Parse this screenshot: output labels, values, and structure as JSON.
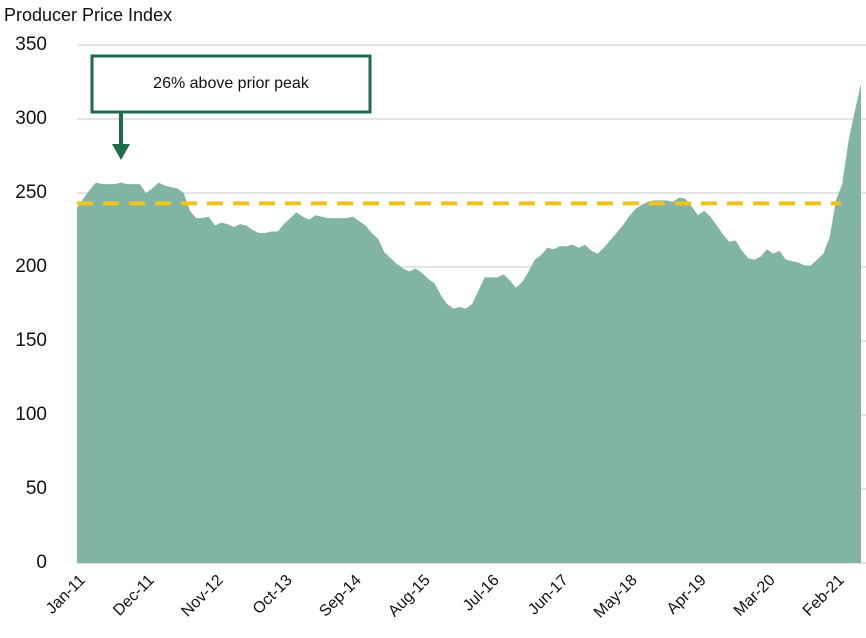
{
  "chart_data": {
    "type": "area",
    "y_label": "Producer Price Index",
    "categories": [
      "Jan-11",
      null,
      null,
      null,
      null,
      null,
      null,
      null,
      null,
      null,
      null,
      "Dec-11",
      null,
      null,
      null,
      null,
      null,
      null,
      null,
      null,
      null,
      null,
      "Nov-12",
      null,
      null,
      null,
      null,
      null,
      null,
      null,
      null,
      null,
      null,
      "Oct-13",
      null,
      null,
      null,
      null,
      null,
      null,
      null,
      null,
      null,
      null,
      "Sep-14",
      null,
      null,
      null,
      null,
      null,
      null,
      null,
      null,
      null,
      null,
      "Aug-15",
      null,
      null,
      null,
      null,
      null,
      null,
      null,
      null,
      null,
      null,
      "Jul-16",
      null,
      null,
      null,
      null,
      null,
      null,
      null,
      null,
      null,
      null,
      "Jun-17",
      null,
      null,
      null,
      null,
      null,
      null,
      null,
      null,
      null,
      null,
      "May-18",
      null,
      null,
      null,
      null,
      null,
      null,
      null,
      null,
      null,
      null,
      "Apr-19",
      null,
      null,
      null,
      null,
      null,
      null,
      null,
      null,
      null,
      null,
      "Mar-20",
      null,
      null,
      null,
      null,
      null,
      null,
      null,
      null,
      null,
      null,
      "Feb-21",
      null,
      null,
      null,
      null
    ],
    "values": [
      240,
      246,
      252,
      257,
      256,
      256,
      256,
      257,
      256,
      256,
      256,
      250,
      253,
      257,
      255,
      254,
      253,
      250,
      238,
      233,
      233,
      234,
      228,
      230,
      229,
      227,
      229,
      228,
      225,
      223,
      223,
      224,
      224,
      229,
      233,
      237,
      234,
      232,
      235,
      234,
      233,
      233,
      233,
      233,
      234,
      231,
      228,
      223,
      219,
      210,
      206,
      202,
      199,
      197,
      199,
      196,
      192,
      189,
      181,
      175,
      172,
      173,
      172,
      175,
      184,
      193,
      193,
      193,
      195,
      191,
      186,
      190,
      197,
      205,
      208,
      213,
      212,
      214,
      214,
      215,
      213,
      215,
      211,
      209,
      213,
      218,
      223,
      228,
      234,
      239,
      242,
      244,
      245,
      245,
      245,
      244,
      247,
      246,
      241,
      235,
      238,
      234,
      228,
      222,
      217,
      218,
      211,
      206,
      205,
      207,
      212,
      209,
      211,
      205,
      204,
      203,
      201,
      201,
      205,
      209,
      220,
      245,
      256,
      285,
      305,
      324
    ],
    "color": "#82b4a6",
    "ylim": [
      0,
      350
    ],
    "yticks": [
      0,
      50,
      100,
      150,
      200,
      250,
      300,
      350
    ],
    "grid": true,
    "reference_line": {
      "value": 243,
      "color": "#f0c419"
    },
    "annotation": {
      "text": "26% above prior peak",
      "color": "#1d6b4c"
    }
  }
}
